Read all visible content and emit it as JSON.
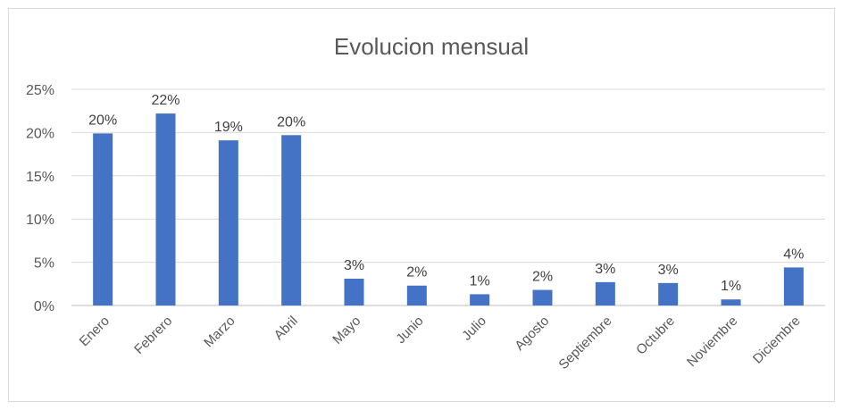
{
  "chart_data": {
    "type": "bar",
    "title": "Evolucion mensual",
    "xlabel": "",
    "ylabel": "",
    "categories": [
      "Enero",
      "Febrero",
      "Marzo",
      "Abril",
      "Mayo",
      "Junio",
      "Julio",
      "Agosto",
      "Septiembre",
      "Octubre",
      "Noviembre",
      "Diciembre"
    ],
    "values": [
      19.9,
      22.2,
      19.1,
      19.7,
      3.1,
      2.3,
      1.3,
      1.8,
      2.7,
      2.6,
      0.7,
      4.4
    ],
    "data_labels": [
      "20%",
      "22%",
      "19%",
      "20%",
      "3%",
      "2%",
      "1%",
      "2%",
      "3%",
      "3%",
      "1%",
      "4%"
    ],
    "y_ticks": [
      0,
      5,
      10,
      15,
      20,
      25
    ],
    "y_tick_labels": [
      "0%",
      "5%",
      "10%",
      "15%",
      "20%",
      "25%"
    ],
    "ylim": [
      0,
      25
    ],
    "grid": true,
    "legend": "none",
    "colors": {
      "bar": "#4472C4"
    }
  }
}
